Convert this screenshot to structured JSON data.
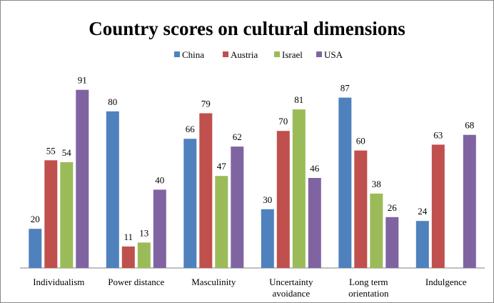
{
  "chart_data": {
    "type": "bar",
    "title": "Country scores on cultural dimensions",
    "categories": [
      [
        "Individualism"
      ],
      [
        "Power distance"
      ],
      [
        "Masculinity"
      ],
      [
        "Uncertainty",
        "avoidance"
      ],
      [
        "Long term",
        "orientation"
      ],
      [
        "Indulgence"
      ]
    ],
    "series": [
      {
        "name": "China",
        "color": "#4f81bd",
        "values": [
          20,
          80,
          66,
          30,
          87,
          24
        ]
      },
      {
        "name": "Austria",
        "color": "#c0504d",
        "values": [
          55,
          11,
          79,
          70,
          60,
          63
        ]
      },
      {
        "name": "Israel",
        "color": "#9bbb59",
        "values": [
          54,
          13,
          47,
          81,
          38,
          null
        ]
      },
      {
        "name": "USA",
        "color": "#8064a2",
        "values": [
          91,
          40,
          62,
          46,
          26,
          68
        ]
      }
    ],
    "ylim": [
      0,
      100
    ],
    "legend_position": "top",
    "grid": false,
    "data_labels": true
  }
}
